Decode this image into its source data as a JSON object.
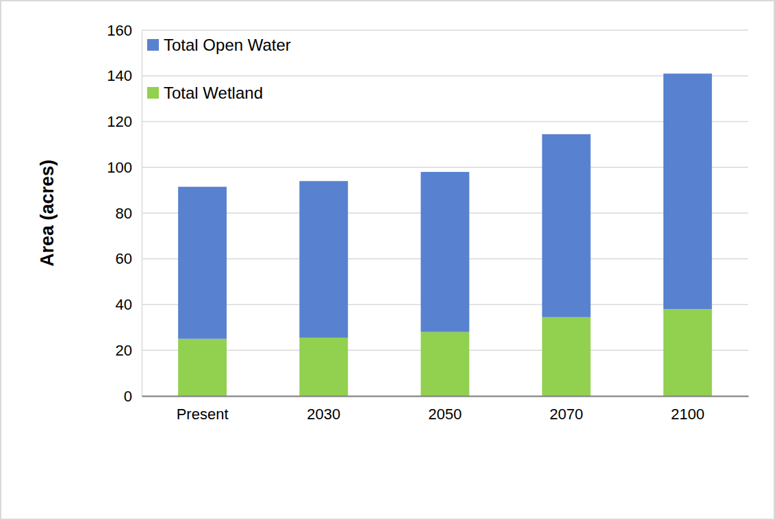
{
  "chart_data": {
    "type": "bar",
    "stacked": true,
    "y_label": "Area (acres)",
    "categories": [
      "Present",
      "2030",
      "2050",
      "2070",
      "2100"
    ],
    "series": [
      {
        "name": "Total Wetland",
        "color": "#92d050",
        "values": [
          25,
          25.5,
          28,
          34.5,
          38
        ]
      },
      {
        "name": "Total Open Water",
        "color": "#5882cf",
        "values": [
          66.5,
          68.5,
          70,
          80,
          103
        ]
      }
    ],
    "ylim": [
      0,
      160
    ],
    "yticks": [
      0,
      20,
      40,
      60,
      80,
      100,
      120,
      140,
      160
    ],
    "grid": true,
    "legend": "top-left"
  }
}
